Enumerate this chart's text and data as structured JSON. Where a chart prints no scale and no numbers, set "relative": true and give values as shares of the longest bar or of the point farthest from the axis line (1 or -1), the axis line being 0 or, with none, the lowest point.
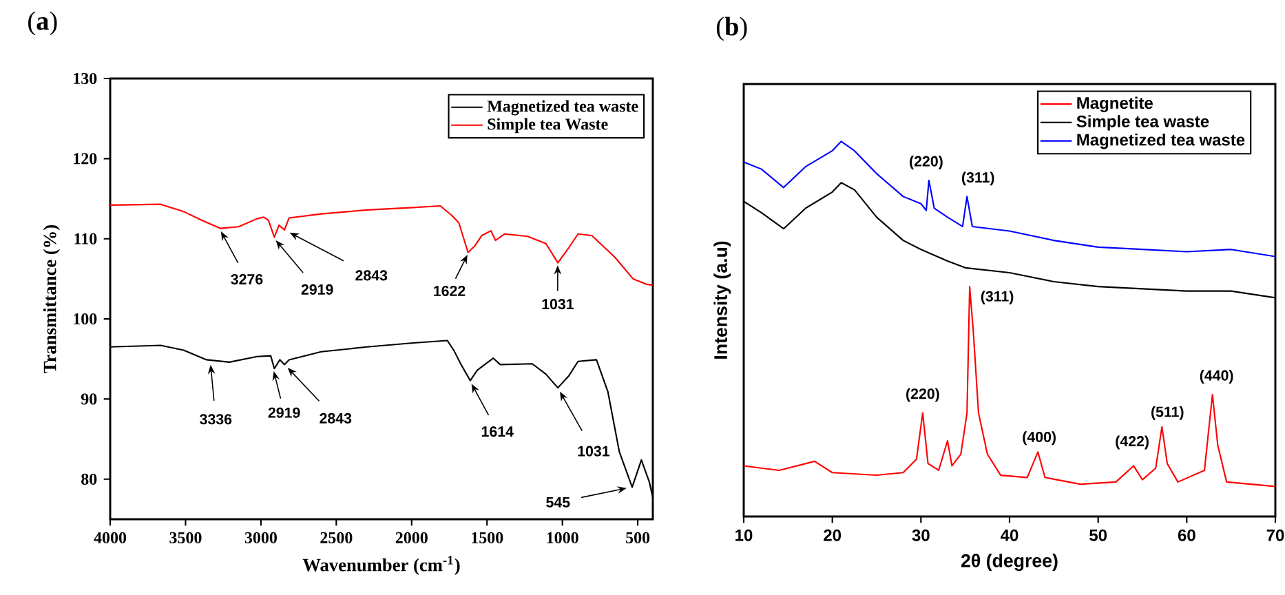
{
  "chart_data": [
    {
      "type": "line",
      "title": "(**a**)",
      "xlabel": "Wavenumber (cm$^{-1}$)",
      "ylabel": "Transmittance (%)",
      "xlim": [
        4000,
        400
      ],
      "ylim": [
        75,
        130
      ],
      "xticks": [
        4000,
        3500,
        3000,
        2500,
        2000,
        1500,
        1000,
        500
      ],
      "yticks": [
        80,
        90,
        100,
        110,
        120,
        130
      ],
      "legend": "top right",
      "series": [
        {
          "name": "Magnetized tea waste",
          "color": "#000000",
          "x": [
            4000,
            3665,
            3513,
            3361,
            3209,
            3026,
            2935,
            2911,
            2874,
            2844,
            2813,
            2600,
            2296,
            1991,
            1763,
            1718,
            1672,
            1611,
            1565,
            1459,
            1413,
            1200,
            1109,
            1030,
            957,
            896,
            774,
            698,
            622,
            537,
            476,
            424,
            400
          ],
          "values": [
            96.5,
            96.7,
            96.1,
            94.9,
            94.6,
            95.3,
            95.4,
            93.8,
            94.9,
            94.3,
            94.9,
            95.9,
            96.5,
            97.0,
            97.3,
            96.0,
            94.3,
            92.3,
            93.6,
            95.1,
            94.3,
            94.4,
            93.1,
            91.4,
            92.9,
            94.7,
            94.9,
            90.9,
            83.4,
            79.0,
            82.4,
            79.7,
            77.7
          ]
        },
        {
          "name": "Simple tea Waste",
          "color": "#ff0000",
          "x": [
            4000,
            3665,
            3513,
            3391,
            3270,
            3148,
            3026,
            2981,
            2950,
            2911,
            2880,
            2844,
            2813,
            2600,
            2296,
            1991,
            1809,
            1733,
            1687,
            1626,
            1581,
            1535,
            1474,
            1444,
            1383,
            1231,
            1109,
            1030,
            957,
            896,
            805,
            652,
            531,
            440,
            400
          ],
          "values": [
            114.2,
            114.3,
            113.4,
            112.3,
            111.3,
            111.5,
            112.5,
            112.7,
            112.3,
            110.2,
            111.7,
            111.1,
            112.6,
            113.1,
            113.6,
            113.9,
            114.1,
            112.9,
            112.0,
            108.3,
            109.1,
            110.4,
            111.0,
            109.8,
            110.6,
            110.3,
            109.4,
            107.0,
            108.9,
            110.6,
            110.4,
            107.7,
            105.0,
            104.3,
            104.2
          ]
        }
      ],
      "annotations": [
        {
          "text": "3276",
          "x": 3276,
          "y": 111.3
        },
        {
          "text": "2919",
          "x": 2919,
          "y": 110.2
        },
        {
          "text": "2843",
          "x": 2843,
          "y": 111.1
        },
        {
          "text": "1622",
          "x": 1622,
          "y": 108.3
        },
        {
          "text": "1031",
          "x": 1031,
          "y": 107.0
        },
        {
          "text": "3336",
          "x": 3336,
          "y": 94.7
        },
        {
          "text": "2919",
          "x": 2919,
          "y": 93.8
        },
        {
          "text": "2843",
          "x": 2843,
          "y": 94.3
        },
        {
          "text": "1614",
          "x": 1614,
          "y": 92.3
        },
        {
          "text": "1031",
          "x": 1031,
          "y": 91.4
        },
        {
          "text": "545",
          "x": 545,
          "y": 79.0
        }
      ]
    },
    {
      "type": "line",
      "title": "(**b**)",
      "xlabel": "2θ (degree)",
      "ylabel": "Intensity (a.u)",
      "xlim": [
        10,
        70
      ],
      "xticks": [
        10,
        20,
        30,
        40,
        50,
        60,
        70
      ],
      "relative": true,
      "legend": "top right",
      "series": [
        {
          "name": "Magnetite",
          "color": "#ff0000",
          "x": [
            10,
            12,
            14,
            18,
            20,
            25,
            28,
            29.5,
            30.2,
            30.8,
            32,
            33,
            33.5,
            34.5,
            35.2,
            35.5,
            35.9,
            36.5,
            37.5,
            39,
            42,
            43.2,
            44,
            48,
            52,
            54,
            55,
            56.5,
            57.2,
            57.8,
            59,
            62,
            62.9,
            63.5,
            64.5,
            70
          ],
          "values": [
            0.135,
            0.129,
            0.123,
            0.147,
            0.117,
            0.11,
            0.117,
            0.153,
            0.276,
            0.141,
            0.123,
            0.202,
            0.135,
            0.166,
            0.276,
            0.613,
            0.497,
            0.276,
            0.166,
            0.11,
            0.104,
            0.172,
            0.104,
            0.086,
            0.092,
            0.135,
            0.098,
            0.129,
            0.239,
            0.141,
            0.092,
            0.123,
            0.325,
            0.19,
            0.092,
            0.08
          ]
        },
        {
          "name": "Simple tea waste",
          "color": "#000000",
          "x": [
            10,
            12,
            14.5,
            17,
            20,
            21,
            22.5,
            25,
            28,
            30,
            33,
            35,
            40,
            45,
            50,
            55,
            60,
            65,
            70
          ],
          "values": [
            0.84,
            0.81,
            0.767,
            0.822,
            0.865,
            0.89,
            0.871,
            0.798,
            0.736,
            0.712,
            0.681,
            0.663,
            0.65,
            0.626,
            0.613,
            0.607,
            0.601,
            0.601,
            0.583
          ]
        },
        {
          "name": "Magnetized tea waste",
          "color": "#0000ff",
          "x": [
            10,
            12,
            14.5,
            17,
            20,
            21,
            22.5,
            25,
            28,
            30,
            30.6,
            30.9,
            31.5,
            33,
            34.7,
            35.2,
            35.8,
            40,
            45,
            50,
            55,
            60,
            65,
            70
          ],
          "values": [
            0.945,
            0.926,
            0.877,
            0.933,
            0.975,
            1.0,
            0.975,
            0.914,
            0.853,
            0.834,
            0.816,
            0.896,
            0.822,
            0.798,
            0.773,
            0.853,
            0.773,
            0.761,
            0.736,
            0.718,
            0.712,
            0.706,
            0.712,
            0.693
          ]
        }
      ],
      "annotations": [
        {
          "text": "(220)",
          "x": 30.9,
          "y": 0.896
        },
        {
          "text": "(311)",
          "x": 35.2,
          "y": 0.853
        },
        {
          "text": "(220)",
          "x": 30.2,
          "y": 0.276
        },
        {
          "text": "(311)",
          "x": 35.5,
          "y": 0.613
        },
        {
          "text": "(400)",
          "x": 43.2,
          "y": 0.172
        },
        {
          "text": "(422)",
          "x": 54,
          "y": 0.135
        },
        {
          "text": "(511)",
          "x": 57.2,
          "y": 0.239
        },
        {
          "text": "(440)",
          "x": 62.9,
          "y": 0.325
        }
      ]
    }
  ]
}
